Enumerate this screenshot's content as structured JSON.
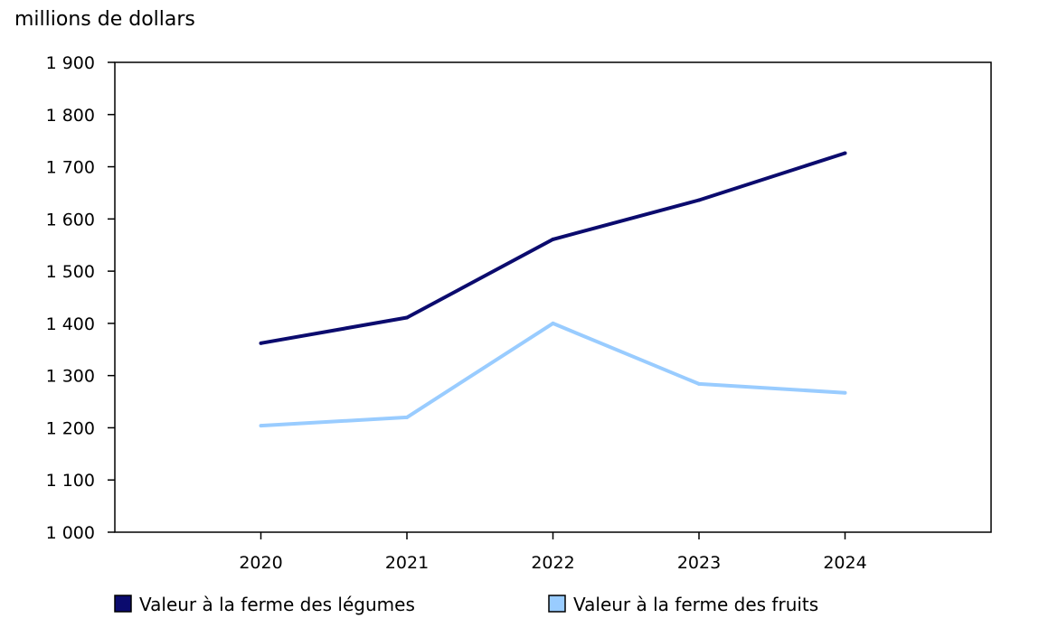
{
  "chart_data": {
    "type": "line",
    "ylabel": "millions de dollars",
    "ylim": [
      1000,
      1900
    ],
    "yticks": [
      1000,
      1100,
      1200,
      1300,
      1400,
      1500,
      1600,
      1700,
      1800,
      1900
    ],
    "ytick_labels": [
      "1 000",
      "1 100",
      "1 200",
      "1 300",
      "1 400",
      "1 500",
      "1 600",
      "1 700",
      "1 800",
      "1 900"
    ],
    "x": [
      "2020",
      "2021",
      "2022",
      "2023",
      "2024"
    ],
    "grid": false,
    "legend_position": "bottom",
    "series": [
      {
        "name": "Valeur à la ferme des légumes",
        "color": "#0b0b6e",
        "values": [
          1362,
          1411,
          1561,
          1636,
          1726
        ]
      },
      {
        "name": "Valeur à la ferme des fruits",
        "color": "#99ccff",
        "values": [
          1204,
          1220,
          1400,
          1284,
          1267
        ]
      }
    ]
  }
}
